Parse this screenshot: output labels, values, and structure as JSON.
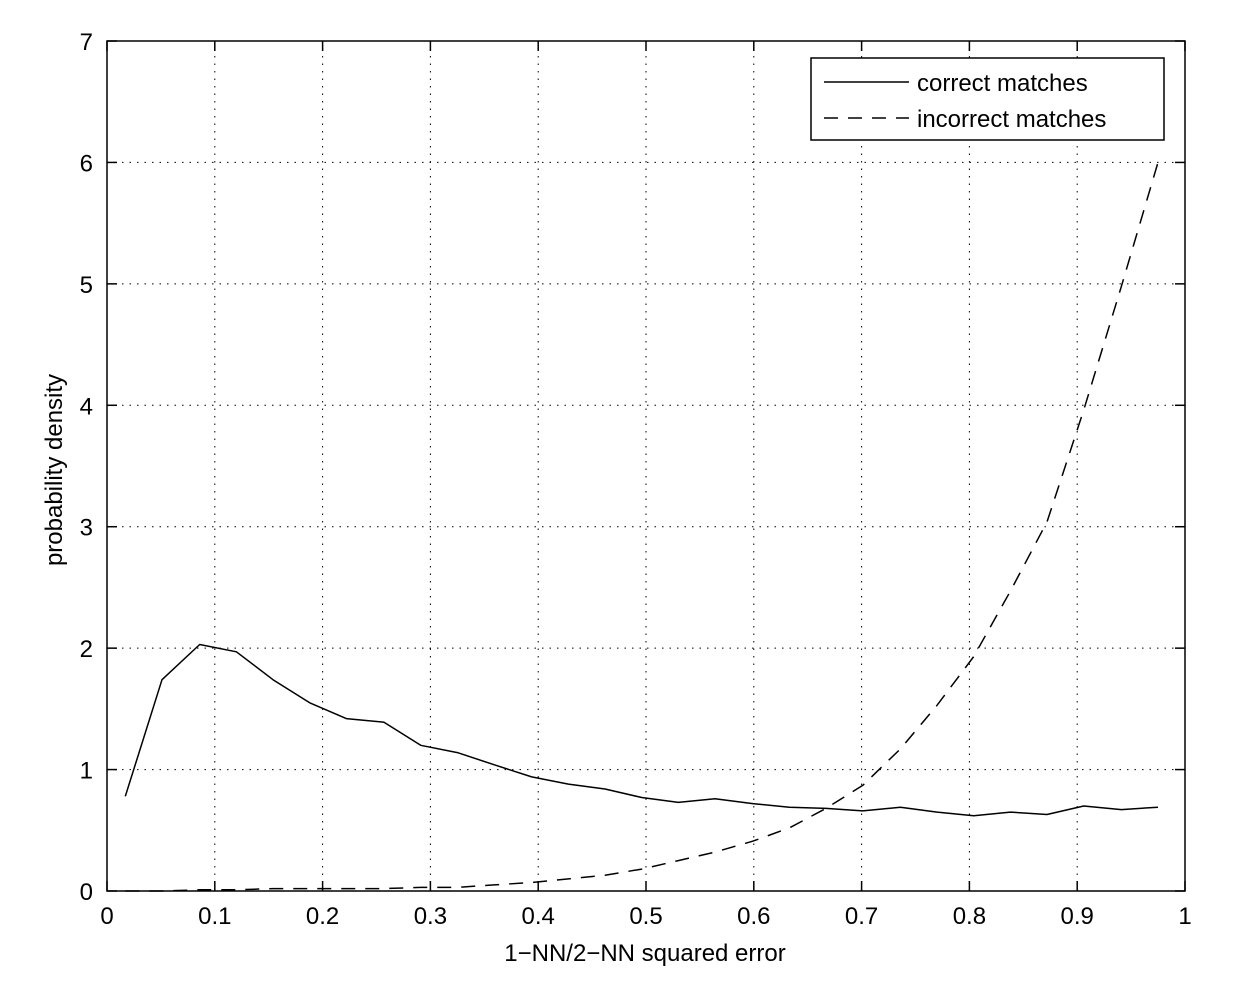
{
  "chart_data": {
    "type": "line",
    "title": "",
    "xlabel": "1−NN/2−NN squared error",
    "ylabel": "probability density",
    "xlim": [
      0,
      1
    ],
    "ylim": [
      0,
      7
    ],
    "xticks": [
      0,
      0.1,
      0.2,
      0.3,
      0.4,
      0.5,
      0.6,
      0.7,
      0.8,
      0.9,
      1
    ],
    "xtick_labels": [
      "0",
      "0.1",
      "0.2",
      "0.3",
      "0.4",
      "0.5",
      "0.6",
      "0.7",
      "0.8",
      "0.9",
      "1"
    ],
    "yticks": [
      0,
      1,
      2,
      3,
      4,
      5,
      6,
      7
    ],
    "ytick_labels": [
      "0",
      "1",
      "2",
      "3",
      "4",
      "5",
      "6",
      "7"
    ],
    "grid": true,
    "legend_position": "top-right",
    "series": [
      {
        "name": "correct matches",
        "style": "solid",
        "color": "#000000",
        "x": [
          0.017,
          0.051,
          0.086,
          0.12,
          0.154,
          0.188,
          0.222,
          0.257,
          0.291,
          0.325,
          0.359,
          0.394,
          0.428,
          0.462,
          0.496,
          0.53,
          0.564,
          0.599,
          0.633,
          0.667,
          0.701,
          0.736,
          0.77,
          0.804,
          0.838,
          0.872,
          0.906,
          0.941,
          0.975
        ],
        "y": [
          0.78,
          1.74,
          2.03,
          1.97,
          1.74,
          1.55,
          1.42,
          1.39,
          1.2,
          1.14,
          1.04,
          0.94,
          0.88,
          0.84,
          0.77,
          0.73,
          0.76,
          0.72,
          0.69,
          0.68,
          0.66,
          0.69,
          0.65,
          0.62,
          0.65,
          0.63,
          0.7,
          0.67,
          0.69
        ]
      },
      {
        "name": "incorrect matches",
        "style": "dashed",
        "color": "#000000",
        "x": [
          0.017,
          0.051,
          0.086,
          0.12,
          0.154,
          0.188,
          0.222,
          0.257,
          0.291,
          0.325,
          0.359,
          0.394,
          0.428,
          0.462,
          0.496,
          0.53,
          0.564,
          0.599,
          0.633,
          0.667,
          0.701,
          0.736,
          0.77,
          0.804,
          0.838,
          0.872,
          0.906,
          0.941,
          0.975
        ],
        "y": [
          0.0,
          0.0,
          0.01,
          0.01,
          0.02,
          0.02,
          0.02,
          0.02,
          0.03,
          0.03,
          0.05,
          0.07,
          0.1,
          0.13,
          0.18,
          0.25,
          0.32,
          0.41,
          0.52,
          0.68,
          0.87,
          1.17,
          1.53,
          1.93,
          2.47,
          3.04,
          3.96,
          4.98,
          6.0
        ]
      }
    ]
  }
}
